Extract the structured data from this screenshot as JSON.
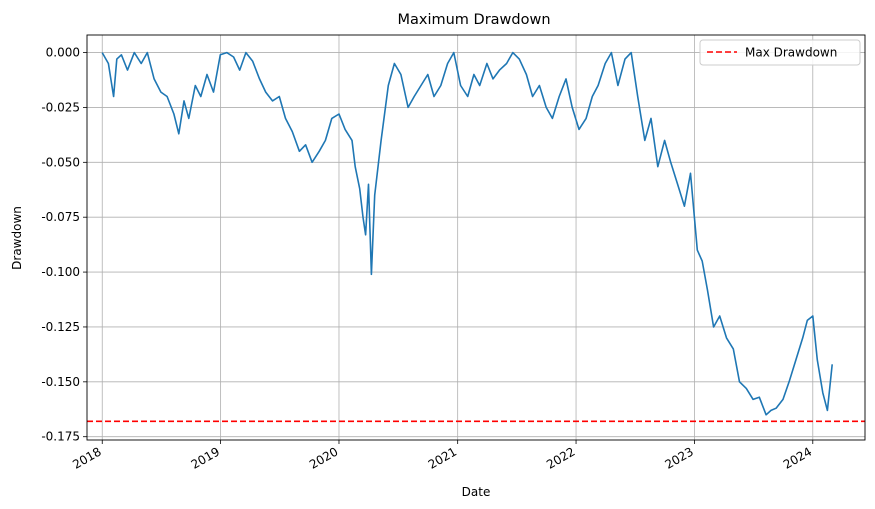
{
  "chart_data": {
    "type": "line",
    "title": "Maximum Drawdown",
    "xlabel": "Date",
    "ylabel": "Drawdown",
    "x_ticks": [
      "2018",
      "2019",
      "2020",
      "2021",
      "2022",
      "2023",
      "2024"
    ],
    "y_ticks": [
      "0.000",
      "-0.025",
      "-0.050",
      "-0.075",
      "-0.100",
      "-0.125",
      "-0.150",
      "-0.175"
    ],
    "xlim": [
      "2017-11-15",
      "2024-06-10"
    ],
    "ylim": [
      -0.1765,
      0.008
    ],
    "grid": true,
    "legend": {
      "placement": "upper-right",
      "entries": [
        "Max Drawdown"
      ]
    },
    "max_drawdown": -0.168,
    "colors": {
      "series": "#1f77b4",
      "max_line": "#ff0000",
      "grid": "#b0b0b0"
    },
    "series": [
      {
        "x": [
          "2018-01-01",
          "2018-01-20",
          "2018-02-05",
          "2018-02-15",
          "2018-03-01",
          "2018-03-20",
          "2018-04-10",
          "2018-05-01",
          "2018-05-20",
          "2018-06-10",
          "2018-07-01",
          "2018-07-20",
          "2018-08-10",
          "2018-08-25",
          "2018-09-10",
          "2018-09-25",
          "2018-10-15",
          "2018-11-01",
          "2018-11-20",
          "2018-12-10",
          "2018-12-31",
          "2019-01-20",
          "2019-02-10",
          "2019-03-01",
          "2019-03-20",
          "2019-04-10",
          "2019-05-01",
          "2019-05-20",
          "2019-06-10",
          "2019-07-01",
          "2019-07-20",
          "2019-08-10",
          "2019-09-01",
          "2019-09-20",
          "2019-10-10",
          "2019-11-01",
          "2019-11-20",
          "2019-12-10",
          "2020-01-01",
          "2020-01-20",
          "2020-02-10",
          "2020-02-20",
          "2020-03-05",
          "2020-03-15",
          "2020-03-23",
          "2020-04-01",
          "2020-04-10",
          "2020-04-20",
          "2020-05-10",
          "2020-06-01",
          "2020-06-20",
          "2020-07-10",
          "2020-08-01",
          "2020-08-20",
          "2020-09-10",
          "2020-10-01",
          "2020-10-20",
          "2020-11-10",
          "2020-12-01",
          "2020-12-20",
          "2021-01-10",
          "2021-02-01",
          "2021-02-20",
          "2021-03-10",
          "2021-04-01",
          "2021-04-20",
          "2021-05-10",
          "2021-06-01",
          "2021-06-20",
          "2021-07-10",
          "2021-08-01",
          "2021-08-20",
          "2021-09-10",
          "2021-10-01",
          "2021-10-20",
          "2021-11-10",
          "2021-12-01",
          "2021-12-20",
          "2022-01-10",
          "2022-02-01",
          "2022-02-20",
          "2022-03-10",
          "2022-04-01",
          "2022-04-20",
          "2022-05-10",
          "2022-06-01",
          "2022-06-20",
          "2022-07-10",
          "2022-08-01",
          "2022-08-20",
          "2022-09-10",
          "2022-10-01",
          "2022-10-20",
          "2022-11-10",
          "2022-12-01",
          "2022-12-20",
          "2023-01-10",
          "2023-01-25",
          "2023-02-10",
          "2023-03-01",
          "2023-03-20",
          "2023-04-10",
          "2023-05-01",
          "2023-05-20",
          "2023-06-10",
          "2023-07-01",
          "2023-07-20",
          "2023-08-10",
          "2023-08-25",
          "2023-09-10",
          "2023-10-01",
          "2023-10-20",
          "2023-11-10",
          "2023-12-01",
          "2023-12-15",
          "2024-01-01",
          "2024-01-15",
          "2024-02-01",
          "2024-02-15",
          "2024-03-01"
        ],
        "y": [
          0.0,
          -0.005,
          -0.02,
          -0.003,
          -0.001,
          -0.008,
          0.0,
          -0.005,
          0.0,
          -0.012,
          -0.018,
          -0.02,
          -0.028,
          -0.037,
          -0.022,
          -0.03,
          -0.015,
          -0.02,
          -0.01,
          -0.018,
          -0.001,
          0.0,
          -0.002,
          -0.008,
          0.0,
          -0.004,
          -0.012,
          -0.018,
          -0.022,
          -0.02,
          -0.03,
          -0.036,
          -0.045,
          -0.042,
          -0.05,
          -0.045,
          -0.04,
          -0.03,
          -0.028,
          -0.035,
          -0.04,
          -0.052,
          -0.062,
          -0.075,
          -0.083,
          -0.06,
          -0.101,
          -0.065,
          -0.04,
          -0.015,
          -0.005,
          -0.01,
          -0.025,
          -0.02,
          -0.015,
          -0.01,
          -0.02,
          -0.015,
          -0.005,
          0.0,
          -0.015,
          -0.02,
          -0.01,
          -0.015,
          -0.005,
          -0.012,
          -0.008,
          -0.005,
          0.0,
          -0.003,
          -0.01,
          -0.02,
          -0.015,
          -0.025,
          -0.03,
          -0.02,
          -0.012,
          -0.025,
          -0.035,
          -0.03,
          -0.02,
          -0.015,
          -0.005,
          0.0,
          -0.015,
          -0.003,
          0.0,
          -0.02,
          -0.04,
          -0.03,
          -0.052,
          -0.04,
          -0.05,
          -0.06,
          -0.07,
          -0.055,
          -0.09,
          -0.095,
          -0.108,
          -0.125,
          -0.12,
          -0.13,
          -0.135,
          -0.15,
          -0.153,
          -0.158,
          -0.157,
          -0.165,
          -0.163,
          -0.162,
          -0.158,
          -0.15,
          -0.14,
          -0.13,
          -0.122,
          -0.12,
          -0.14,
          -0.155,
          -0.163,
          -0.142
        ]
      }
    ]
  }
}
